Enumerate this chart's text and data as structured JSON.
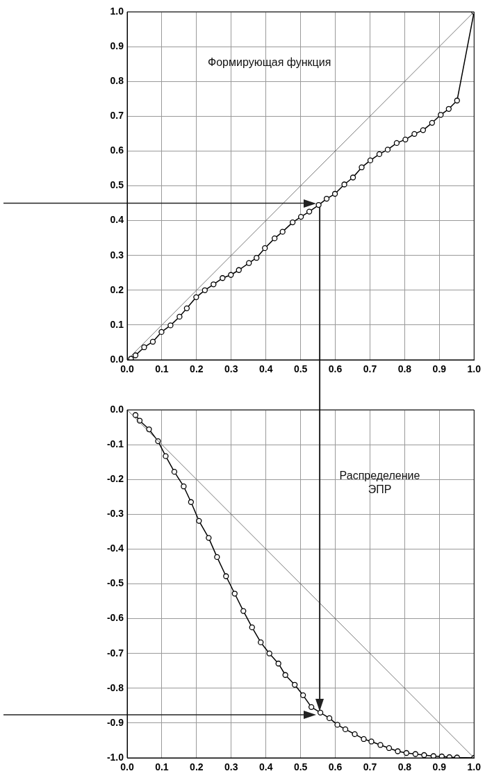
{
  "chart_data": [
    {
      "type": "line",
      "title": "Формирующая функция",
      "marker": "circle",
      "grid": true,
      "xlim": [
        0,
        1
      ],
      "ylim": [
        0,
        1
      ],
      "xticks": [
        {
          "value": 0,
          "label": "0.0"
        },
        {
          "value": 0.1,
          "label": "0.1"
        },
        {
          "value": 0.2,
          "label": "0.2"
        },
        {
          "value": 0.3,
          "label": "0.3"
        },
        {
          "value": 0.4,
          "label": "0.4"
        },
        {
          "value": 0.5,
          "label": "0.5"
        },
        {
          "value": 0.6,
          "label": "0.6"
        },
        {
          "value": 0.7,
          "label": "0.7"
        },
        {
          "value": 0.8,
          "label": "0.8"
        },
        {
          "value": 0.9,
          "label": "0.9"
        },
        {
          "value": 1,
          "label": "1.0"
        }
      ],
      "yticks": [
        {
          "value": 0,
          "label": "0.0"
        },
        {
          "value": 0.1,
          "label": "0.1"
        },
        {
          "value": 0.2,
          "label": "0.2"
        },
        {
          "value": 0.3,
          "label": "0.3"
        },
        {
          "value": 0.4,
          "label": "0.4"
        },
        {
          "value": 0.5,
          "label": "0.5"
        },
        {
          "value": 0.6,
          "label": "0.6"
        },
        {
          "value": 0.7,
          "label": "0.7"
        },
        {
          "value": 0.8,
          "label": "0.8"
        },
        {
          "value": 0.9,
          "label": "0.9"
        },
        {
          "value": 1,
          "label": "1.0"
        }
      ],
      "ref_lines": [
        {
          "axis": "y",
          "value": 0.45,
          "color": "#222222"
        },
        {
          "axis": "x",
          "value": 0.555,
          "color": "#222222"
        }
      ],
      "series": [
        {
          "color": "#555555",
          "marker": "none",
          "x": [
            0,
            1
          ],
          "values": [
            0,
            1
          ]
        },
        {
          "color": "#000000",
          "x": [
            0.011,
            0.024,
            0.049,
            0.074,
            0.099,
            0.125,
            0.151,
            0.172,
            0.199,
            0.224,
            0.249,
            0.275,
            0.299,
            0.322,
            0.351,
            0.373,
            0.397,
            0.425,
            0.448,
            0.477,
            0.501,
            0.525,
            0.552,
            0.575,
            0.599,
            0.626,
            0.651,
            0.676,
            0.701,
            0.727,
            0.751,
            0.777,
            0.802,
            0.828,
            0.853,
            0.879,
            0.904,
            0.927,
            0.951,
            1.0
          ],
          "values": [
            0.003,
            0.013,
            0.036,
            0.052,
            0.08,
            0.099,
            0.124,
            0.148,
            0.18,
            0.2,
            0.217,
            0.235,
            0.244,
            0.258,
            0.278,
            0.293,
            0.321,
            0.349,
            0.368,
            0.395,
            0.411,
            0.426,
            0.445,
            0.463,
            0.477,
            0.504,
            0.524,
            0.553,
            0.573,
            0.591,
            0.604,
            0.623,
            0.633,
            0.649,
            0.66,
            0.681,
            0.704,
            0.721,
            0.745,
            1.0
          ]
        }
      ]
    },
    {
      "type": "line",
      "title": "Распределение ЭПР",
      "marker": "circle",
      "grid": true,
      "xlim": [
        0,
        1
      ],
      "ylim": [
        -1,
        0
      ],
      "xticks": [
        {
          "value": 0,
          "label": "0.0"
        },
        {
          "value": 0.1,
          "label": "0.1"
        },
        {
          "value": 0.2,
          "label": "0.2"
        },
        {
          "value": 0.3,
          "label": "0.3"
        },
        {
          "value": 0.4,
          "label": "0.4"
        },
        {
          "value": 0.5,
          "label": "0.5"
        },
        {
          "value": 0.6,
          "label": "0.6"
        },
        {
          "value": 0.7,
          "label": "0.7"
        },
        {
          "value": 0.8,
          "label": "0.8"
        },
        {
          "value": 0.9,
          "label": "0.9"
        },
        {
          "value": 1,
          "label": "1.0"
        }
      ],
      "yticks": [
        {
          "value": 0,
          "label": "0.0"
        },
        {
          "value": -0.1,
          "label": "-0.1"
        },
        {
          "value": -0.2,
          "label": "-0.2"
        },
        {
          "value": -0.3,
          "label": "-0.3"
        },
        {
          "value": -0.4,
          "label": "-0.4"
        },
        {
          "value": -0.5,
          "label": "-0.5"
        },
        {
          "value": -0.6,
          "label": "-0.6"
        },
        {
          "value": -0.7,
          "label": "-0.7"
        },
        {
          "value": -0.8,
          "label": "-0.8"
        },
        {
          "value": -0.9,
          "label": "-0.9"
        },
        {
          "value": -1,
          "label": "-1.0"
        }
      ],
      "ref_lines": [
        {
          "axis": "y",
          "value": -0.876,
          "color": "#222222"
        },
        {
          "axis": "x",
          "value": 0.555,
          "color": "#222222"
        }
      ],
      "series": [
        {
          "color": "#555555",
          "marker": "none",
          "x": [
            0,
            1
          ],
          "values": [
            0,
            -1
          ]
        },
        {
          "color": "#000000",
          "x": [
            0.024,
            0.036,
            0.063,
            0.089,
            0.111,
            0.136,
            0.163,
            0.184,
            0.207,
            0.235,
            0.259,
            0.285,
            0.31,
            0.335,
            0.36,
            0.385,
            0.41,
            0.436,
            0.456,
            0.483,
            0.507,
            0.531,
            0.557,
            0.583,
            0.606,
            0.629,
            0.656,
            0.682,
            0.704,
            0.73,
            0.755,
            0.78,
            0.805,
            0.831,
            0.856,
            0.883,
            0.907,
            0.929,
            0.951,
            1.0
          ],
          "values": [
            -0.015,
            -0.031,
            -0.056,
            -0.09,
            -0.133,
            -0.178,
            -0.22,
            -0.265,
            -0.319,
            -0.368,
            -0.423,
            -0.478,
            -0.528,
            -0.578,
            -0.625,
            -0.668,
            -0.7,
            -0.729,
            -0.762,
            -0.79,
            -0.82,
            -0.854,
            -0.87,
            -0.886,
            -0.905,
            -0.918,
            -0.932,
            -0.946,
            -0.953,
            -0.963,
            -0.972,
            -0.981,
            -0.986,
            -0.989,
            -0.992,
            -0.995,
            -0.996,
            -0.998,
            -0.999,
            -1.0
          ]
        }
      ]
    }
  ]
}
